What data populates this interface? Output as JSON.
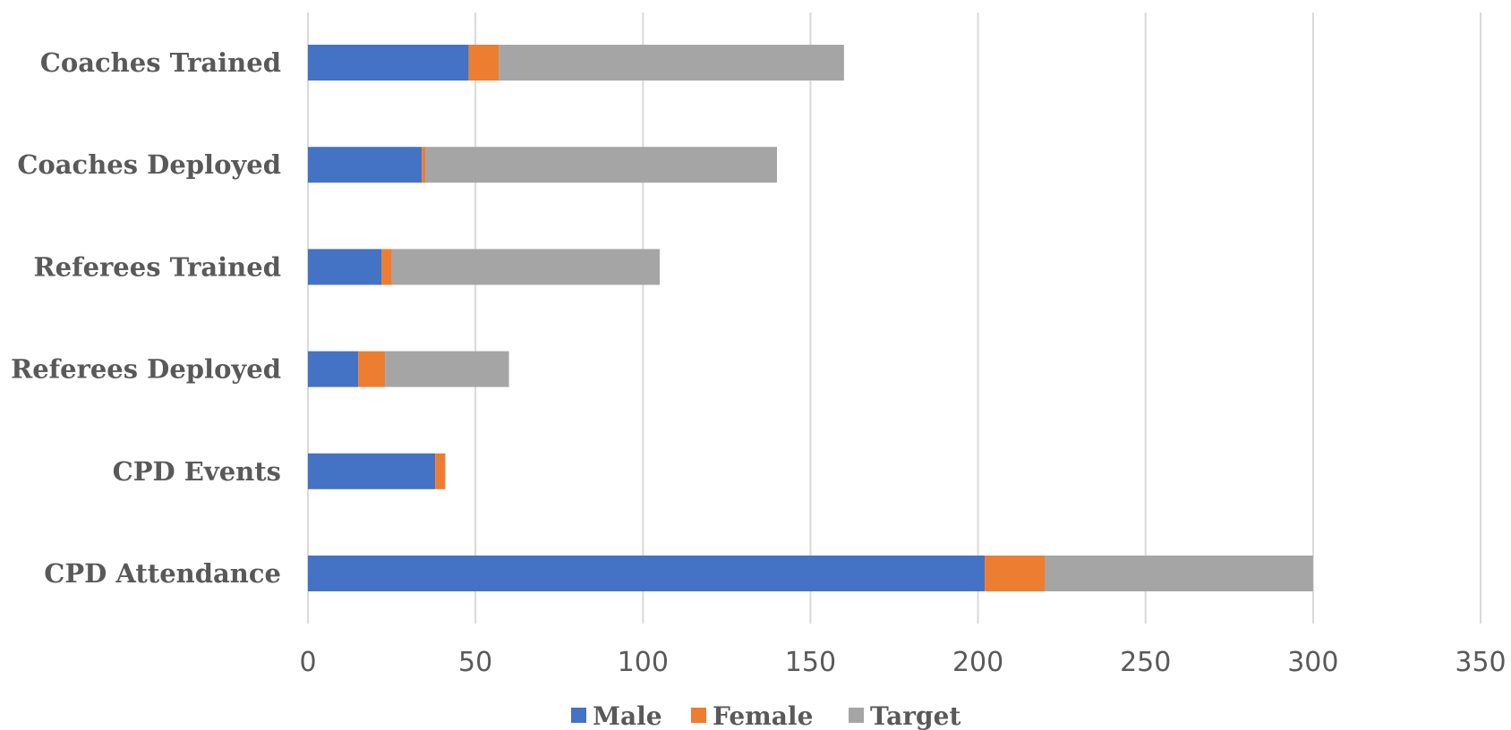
{
  "chart_data": {
    "type": "bar",
    "orientation": "horizontal",
    "stacked": true,
    "categories": [
      "Coaches Trained",
      "Coaches Deployed",
      "Referees Trained",
      "Referees Deployed",
      "CPD Events",
      "CPD Attendance"
    ],
    "series": [
      {
        "name": "Male",
        "color": "#4472C4",
        "values": [
          48,
          34,
          22,
          15,
          38,
          202
        ]
      },
      {
        "name": "Female",
        "color": "#ED7D31",
        "values": [
          9,
          1,
          3,
          8,
          3,
          18
        ]
      },
      {
        "name": "Target",
        "color": "#A5A5A5",
        "values": [
          103,
          105,
          80,
          37,
          0,
          80
        ]
      }
    ],
    "xlim": [
      0,
      350
    ],
    "xticks": [
      "0",
      "50",
      "100",
      "150",
      "200",
      "250",
      "300",
      "350"
    ],
    "grid": "vertical",
    "legend_position": "bottom"
  }
}
